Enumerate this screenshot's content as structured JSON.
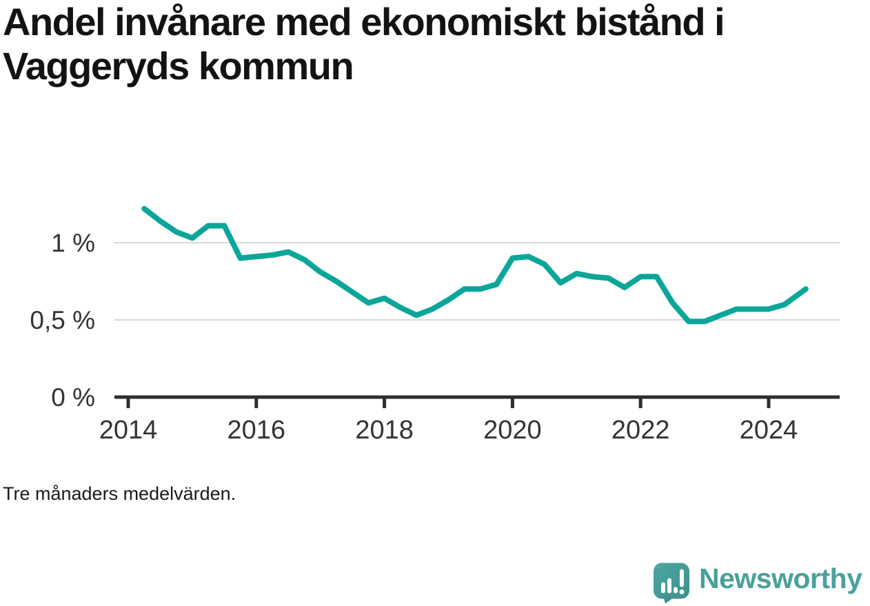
{
  "page": {
    "title": "Andel invånare med ekonomiskt bistånd i Vaggeryds kommun",
    "footnote": "Tre månaders medelvärden.",
    "brand": {
      "name": "Newsworthy",
      "icon": "newsworthy-speech-bubble-bar-chart-icon",
      "color": "#48a19b"
    }
  },
  "chart_data": {
    "type": "line",
    "title": "Andel invånare med ekonomiskt bistånd i Vaggeryds kommun",
    "note": "Tre månaders medelvärden.",
    "unit": "%",
    "legend": "none",
    "grid": "horizontal",
    "xlabel": "",
    "ylabel": "",
    "xlim": [
      2013.78,
      2025.1
    ],
    "ylim": [
      0,
      1.45
    ],
    "x_ticks": [
      2014,
      2016,
      2018,
      2020,
      2022,
      2024
    ],
    "x_tick_labels": [
      "2014",
      "2016",
      "2018",
      "2020",
      "2022",
      "2024"
    ],
    "y_ticks": [
      0,
      0.5,
      1
    ],
    "y_tick_labels": [
      "0 %",
      "0,5 %",
      "1 %"
    ],
    "x": [
      2014.25,
      2014.5,
      2014.75,
      2015.0,
      2015.25,
      2015.5,
      2015.75,
      2016.0,
      2016.25,
      2016.5,
      2016.75,
      2017.0,
      2017.25,
      2017.5,
      2017.75,
      2018.0,
      2018.25,
      2018.5,
      2018.75,
      2019.0,
      2019.25,
      2019.5,
      2019.75,
      2020.0,
      2020.25,
      2020.5,
      2020.75,
      2021.0,
      2021.25,
      2021.5,
      2021.75,
      2022.0,
      2022.25,
      2022.5,
      2022.75,
      2023.0,
      2023.25,
      2023.5,
      2023.75,
      2024.0,
      2024.25,
      2024.58
    ],
    "y": [
      1.22,
      1.14,
      1.07,
      1.03,
      1.11,
      1.11,
      0.9,
      0.91,
      0.92,
      0.94,
      0.89,
      0.81,
      0.75,
      0.68,
      0.61,
      0.64,
      0.58,
      0.53,
      0.57,
      0.63,
      0.7,
      0.7,
      0.73,
      0.9,
      0.91,
      0.86,
      0.74,
      0.8,
      0.78,
      0.77,
      0.71,
      0.78,
      0.78,
      0.61,
      0.49,
      0.49,
      0.53,
      0.57,
      0.57,
      0.57,
      0.6,
      0.7
    ],
    "colors": {
      "line": "#0ba69a",
      "grid": "#d9d9d9",
      "axis": "#2e2e2e",
      "tick_label": "#333333"
    }
  }
}
